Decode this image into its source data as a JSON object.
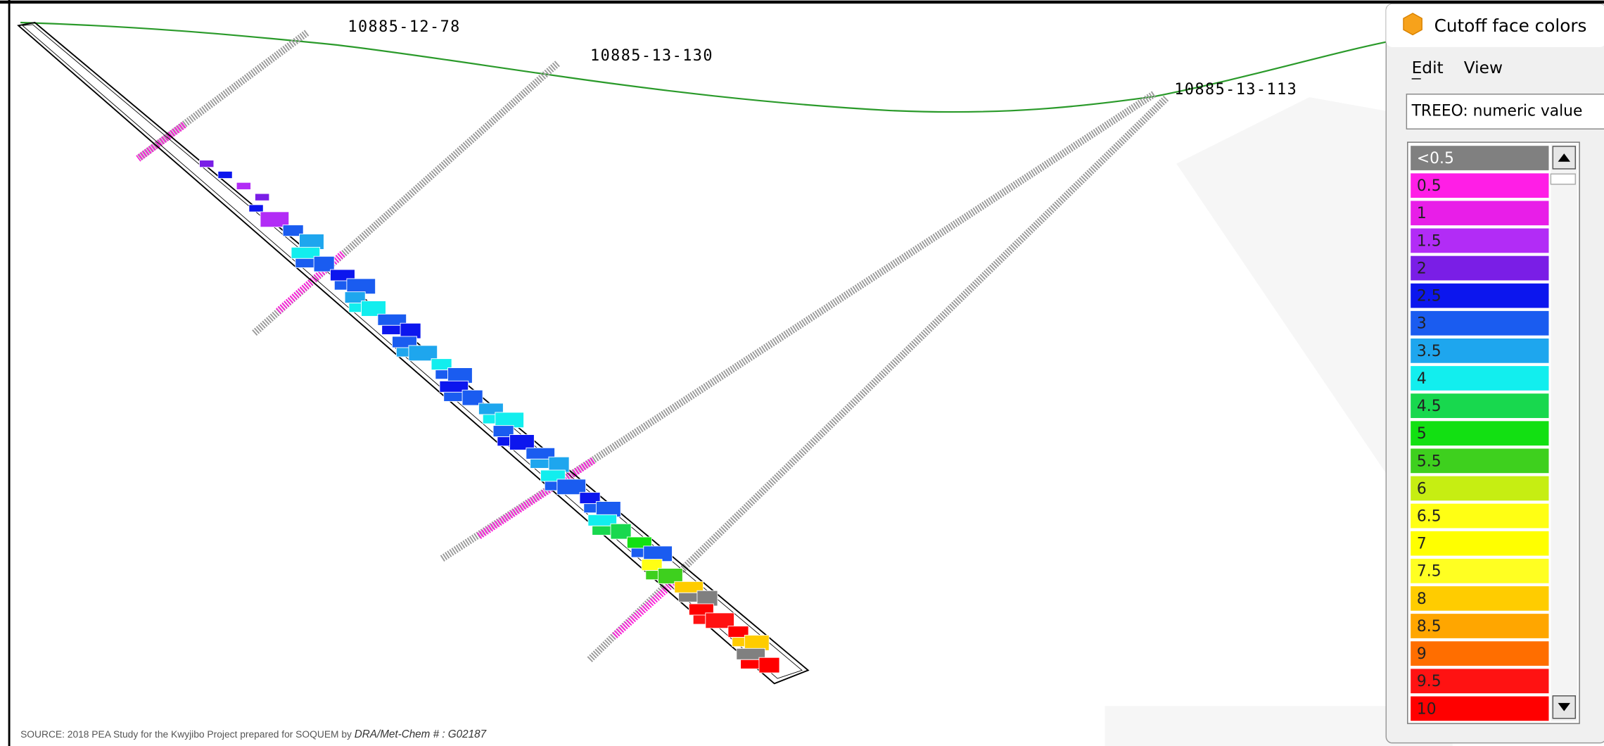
{
  "section": {
    "holes": [
      "10885-12-78",
      "10885-13-130",
      "10885-13-113"
    ]
  },
  "window": {
    "title": "Cutoff face colors",
    "menu": [
      "Edit",
      "View"
    ],
    "field": "TREEO: numeric value"
  },
  "legend": {
    "items": [
      {
        "label": "<0.5",
        "color": "#808080"
      },
      {
        "label": "0.5",
        "color": "#ff1ee6"
      },
      {
        "label": "1",
        "color": "#e81ee8"
      },
      {
        "label": "1.5",
        "color": "#b22cf6"
      },
      {
        "label": "2",
        "color": "#7a1ee6"
      },
      {
        "label": "2.5",
        "color": "#0c16ee"
      },
      {
        "label": "3",
        "color": "#1a5cf0"
      },
      {
        "label": "3.5",
        "color": "#1ea6ee"
      },
      {
        "label": "4",
        "color": "#12eeee"
      },
      {
        "label": "4.5",
        "color": "#18d84e"
      },
      {
        "label": "5",
        "color": "#12e012"
      },
      {
        "label": "5.5",
        "color": "#3ed01e"
      },
      {
        "label": "6",
        "color": "#c6ee12"
      },
      {
        "label": "6.5",
        "color": "#ffff14"
      },
      {
        "label": "7",
        "color": "#ffff00"
      },
      {
        "label": "7.5",
        "color": "#ffff22"
      },
      {
        "label": "8",
        "color": "#ffcc00"
      },
      {
        "label": "8.5",
        "color": "#ffa600"
      },
      {
        "label": "9",
        "color": "#ff6e00"
      },
      {
        "label": "9.5",
        "color": "#ff1212"
      },
      {
        "label": "10",
        "color": "#ff0000"
      }
    ]
  },
  "source": {
    "text": "SOURCE:  2018 PEA Study for the Kwyjibo Project prepared for SOQUEM  by ",
    "ref": "DRA/Met-Chem # : G02187"
  }
}
